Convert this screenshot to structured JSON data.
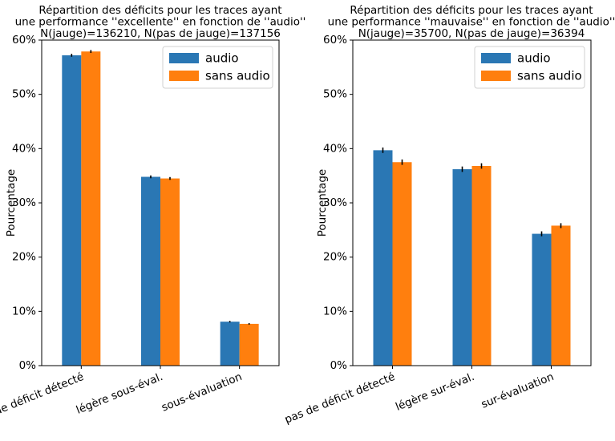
{
  "colors": {
    "audio": "#2a77b4",
    "sans_audio": "#ff7f0e",
    "errorbar": "#000000",
    "frame": "#000000"
  },
  "chart_data": [
    {
      "type": "bar",
      "title_lines": [
        "Répartition des déficits pour les traces ayant",
        "une performance ''excellente'' en fonction de ''audio''",
        "N(jauge)=136210, N(pas de jauge)=137156"
      ],
      "xlabel": "",
      "ylabel": "Pourcentage",
      "ylim": [
        0,
        60
      ],
      "yticks": [
        0,
        10,
        20,
        30,
        40,
        50,
        60
      ],
      "ytick_labels": [
        "0%",
        "10%",
        "20%",
        "30%",
        "40%",
        "50%",
        "60%"
      ],
      "categories": [
        "pas de déficit détecté",
        "légère sous-éval.",
        "sous-évaluation"
      ],
      "series": [
        {
          "name": "audio",
          "values": [
            57.2,
            34.8,
            8.1
          ],
          "errors": [
            0.27,
            0.26,
            0.14
          ]
        },
        {
          "name": "sans audio",
          "values": [
            57.9,
            34.5,
            7.7
          ],
          "errors": [
            0.27,
            0.26,
            0.14
          ]
        }
      ],
      "legend": "top-right",
      "grid": false
    },
    {
      "type": "bar",
      "title_lines": [
        "Répartition des déficits pour les traces ayant",
        "une performance ''mauvaise'' en fonction de ''audio''",
        "N(jauge)=35700, N(pas de jauge)=36394"
      ],
      "xlabel": "",
      "ylabel": "Pourcentage",
      "ylim": [
        0,
        60
      ],
      "yticks": [
        0,
        10,
        20,
        30,
        40,
        50,
        60
      ],
      "ytick_labels": [
        "0%",
        "10%",
        "20%",
        "30%",
        "40%",
        "50%",
        "60%"
      ],
      "categories": [
        "pas de déficit détecté",
        "légère sur-éval.",
        "sur-évaluation"
      ],
      "series": [
        {
          "name": "audio",
          "values": [
            39.7,
            36.2,
            24.3
          ],
          "errors": [
            0.5,
            0.5,
            0.45
          ]
        },
        {
          "name": "sans audio",
          "values": [
            37.5,
            36.8,
            25.8
          ],
          "errors": [
            0.5,
            0.5,
            0.45
          ]
        }
      ],
      "legend": "top-right",
      "grid": false
    }
  ]
}
